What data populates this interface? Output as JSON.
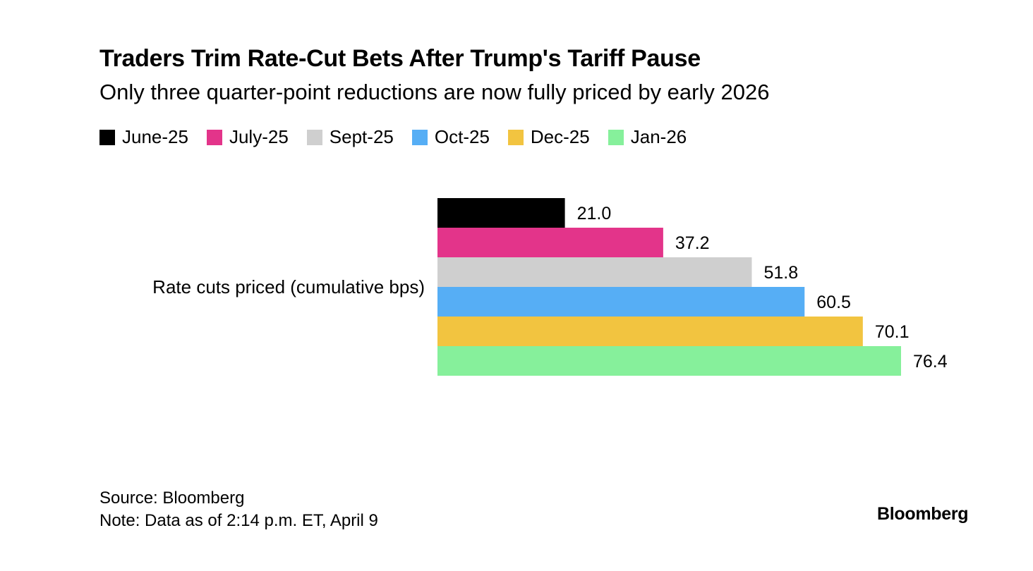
{
  "header": {
    "title": "Traders Trim Rate-Cut Bets After Trump's Tariff Pause",
    "subtitle": "Only three quarter-point reductions are now fully priced by early 2026"
  },
  "legend": [
    {
      "label": "June-25",
      "color": "#000000"
    },
    {
      "label": "July-25",
      "color": "#e3348a"
    },
    {
      "label": "Sept-25",
      "color": "#cfcfcf"
    },
    {
      "label": "Oct-25",
      "color": "#56aef5"
    },
    {
      "label": "Dec-25",
      "color": "#f2c440"
    },
    {
      "label": "Jan-26",
      "color": "#86f09b"
    }
  ],
  "chart_data": {
    "type": "bar",
    "orientation": "horizontal",
    "categories": [
      "Rate cuts priced (cumulative bps)"
    ],
    "series": [
      {
        "name": "June-25",
        "values": [
          21.0
        ],
        "label": "21.0",
        "color": "#000000"
      },
      {
        "name": "July-25",
        "values": [
          37.2
        ],
        "label": "37.2",
        "color": "#e3348a"
      },
      {
        "name": "Sept-25",
        "values": [
          51.8
        ],
        "label": "51.8",
        "color": "#cfcfcf"
      },
      {
        "name": "Oct-25",
        "values": [
          60.5
        ],
        "label": "60.5",
        "color": "#56aef5"
      },
      {
        "name": "Dec-25",
        "values": [
          70.1
        ],
        "label": "70.1",
        "color": "#f2c440"
      },
      {
        "name": "Jan-26",
        "values": [
          76.4
        ],
        "label": "76.4",
        "color": "#86f09b"
      }
    ],
    "xlim": [
      0,
      76.4
    ],
    "grid": false,
    "legend_position": "top"
  },
  "footer": {
    "source": "Source: Bloomberg",
    "note": "Note: Data as of 2:14 p.m. ET, April 9"
  },
  "logo": "Bloomberg"
}
